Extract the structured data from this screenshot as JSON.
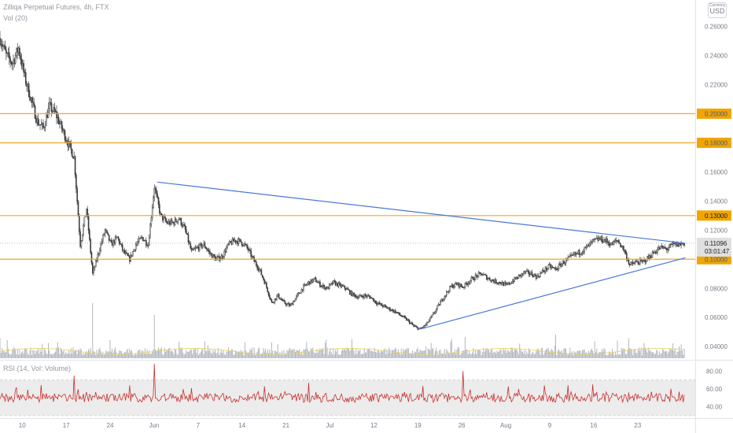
{
  "header": {
    "symbol_line": "Zilliqa Perpetual Futures, 4h, FTX",
    "vol_legend": "Vol (20)",
    "rsi_legend": "RSI (14, Vol: Volume)",
    "currency_small": "Currency",
    "currency": "USD"
  },
  "chart_data": {
    "type": "line",
    "subtype": "candlestick",
    "title": "Zilliqa Perpetual Futures, 4h, FTX",
    "x_ticks": [
      "10",
      "17",
      "24",
      "Jun",
      "7",
      "14",
      "21",
      "Jul",
      "12",
      "19",
      "26",
      "Aug",
      "9",
      "16",
      "23"
    ],
    "y_ticks": [
      "0.26000",
      "0.24000",
      "0.22000",
      "0.20000",
      "0.18000",
      "0.16000",
      "0.14000",
      "0.12000",
      "0.10000",
      "0.08000",
      "0.06000",
      "0.04000"
    ],
    "ylim": [
      0.032,
      0.27
    ],
    "price_path": {
      "x_day": [
        0,
        1,
        2,
        3,
        4,
        5,
        6,
        7,
        8,
        9,
        10,
        11,
        12,
        13,
        14,
        15,
        16,
        17,
        18,
        19,
        20,
        21,
        22,
        23,
        24,
        25,
        26,
        27,
        28,
        29,
        30,
        31,
        32,
        33,
        34,
        35,
        36,
        37,
        38,
        39,
        40,
        41,
        42,
        43,
        44,
        45,
        46,
        47,
        48,
        49,
        50,
        51,
        52,
        53,
        54,
        55,
        56,
        57,
        58,
        59,
        60,
        61,
        62,
        63,
        64,
        65,
        66,
        67,
        68,
        69,
        70,
        71,
        72,
        73,
        74,
        75,
        76,
        77,
        78,
        79,
        80,
        81,
        82,
        83,
        84,
        85,
        86,
        87,
        88,
        89,
        90,
        91,
        92,
        93,
        94,
        95,
        96,
        97,
        98,
        99,
        100,
        101,
        102,
        103,
        104,
        105,
        106,
        107,
        108,
        109,
        110,
        111
      ],
      "close": [
        0.252,
        0.24,
        0.235,
        0.245,
        0.225,
        0.21,
        0.195,
        0.19,
        0.205,
        0.2,
        0.19,
        0.18,
        0.17,
        0.11,
        0.135,
        0.09,
        0.105,
        0.12,
        0.11,
        0.115,
        0.105,
        0.1,
        0.11,
        0.115,
        0.11,
        0.15,
        0.13,
        0.125,
        0.125,
        0.128,
        0.12,
        0.105,
        0.108,
        0.11,
        0.104,
        0.1,
        0.102,
        0.11,
        0.113,
        0.112,
        0.108,
        0.1,
        0.093,
        0.083,
        0.07,
        0.075,
        0.07,
        0.068,
        0.074,
        0.08,
        0.084,
        0.086,
        0.082,
        0.08,
        0.084,
        0.082,
        0.08,
        0.076,
        0.074,
        0.075,
        0.074,
        0.07,
        0.068,
        0.066,
        0.064,
        0.061,
        0.058,
        0.054,
        0.052,
        0.055,
        0.061,
        0.068,
        0.075,
        0.081,
        0.083,
        0.081,
        0.085,
        0.088,
        0.09,
        0.087,
        0.085,
        0.084,
        0.082,
        0.085,
        0.088,
        0.091,
        0.09,
        0.088,
        0.092,
        0.095,
        0.093,
        0.097,
        0.1,
        0.103,
        0.105,
        0.108,
        0.112,
        0.114,
        0.113,
        0.11,
        0.113,
        0.107,
        0.096,
        0.098,
        0.098,
        0.101,
        0.105,
        0.108,
        0.107,
        0.11,
        0.11,
        0.111
      ]
    },
    "horizontal_levels": [
      {
        "value": 0.2,
        "label": "0.20000"
      },
      {
        "value": 0.18,
        "label": "0.18000"
      },
      {
        "value": 0.13,
        "label": "0.13000"
      },
      {
        "value": 0.1,
        "label": "0.10000"
      }
    ],
    "trendlines": [
      {
        "x_day": [
          25.5,
          111
        ],
        "y": [
          0.153,
          0.111
        ]
      },
      {
        "x_day": [
          68,
          111
        ],
        "y": [
          0.052,
          0.101
        ]
      }
    ],
    "last_price": {
      "label": "0.11096",
      "countdown": "03:01:47",
      "value": 0.111
    },
    "volume": {
      "ylim": [
        0,
        40
      ],
      "spike_day": [
        0,
        15,
        25,
        44,
        69,
        90,
        100,
        110
      ],
      "spike_value": [
        10,
        28,
        22,
        8,
        6,
        12,
        9,
        6
      ]
    },
    "rsi": {
      "ylim": [
        30,
        90
      ],
      "y_ticks": [
        "80.00",
        "60.00",
        "40.00"
      ],
      "band": [
        30,
        70
      ],
      "spike_day": [
        12,
        25,
        50,
        75,
        96,
        110
      ],
      "spike_value": [
        75,
        88,
        67,
        80,
        65,
        57
      ]
    },
    "colors": {
      "candle": "#3d3d3d",
      "level_line": "#f5a623",
      "level_badge": "#f0a500",
      "trendline": "#4a77d8",
      "volume": "#b2b5be",
      "volume_ma": "#e6d35a",
      "rsi_line": "#c8302d",
      "rsi_band": "#ececec"
    }
  }
}
